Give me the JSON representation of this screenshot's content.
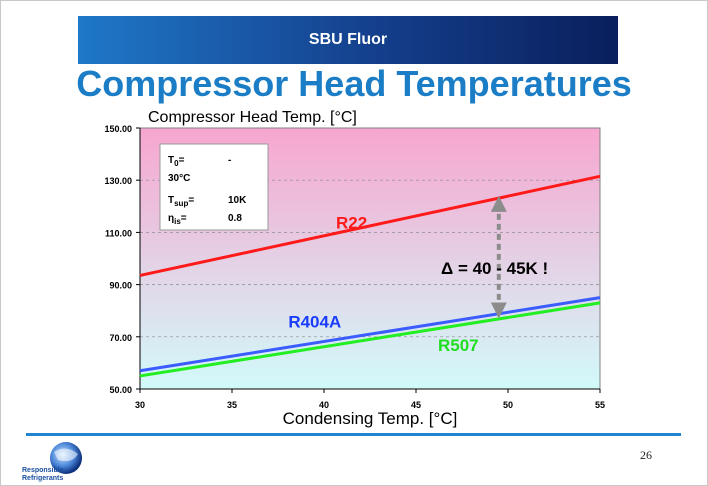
{
  "slide": {
    "banner_text": "SBU Fluor",
    "title": "Compressor Head Temperatures",
    "page_number": "26",
    "logo_text_1": "Responsible",
    "logo_text_2": "Refrigerants"
  },
  "chart_data": {
    "type": "line",
    "ylabel": "Compressor Head Temp. [°C]",
    "xlabel": "Condensing Temp. [°C]",
    "xlim": [
      30,
      55
    ],
    "ylim": [
      50,
      150
    ],
    "xticks": [
      30,
      35,
      40,
      45,
      50,
      55
    ],
    "xtick_labels": [
      "30",
      "35",
      "40",
      "45",
      "50",
      "55"
    ],
    "yticks": [
      50,
      70,
      90,
      110,
      130,
      150
    ],
    "ytick_labels": [
      "50.00",
      "70.00",
      "90.00",
      "110.00",
      "130.00",
      "150.00"
    ],
    "grid": true,
    "series": [
      {
        "name": "R22",
        "x": [
          30,
          55
        ],
        "y": [
          93.5,
          131.5
        ],
        "color": "#ff1a1a",
        "label_color": "#ff1a1a",
        "label_at": [
          41.5,
          111.5
        ]
      },
      {
        "name": "R404A",
        "x": [
          30,
          55
        ],
        "y": [
          57,
          85
        ],
        "color": "#3b5cff",
        "label_color": "#1a3cff",
        "label_at": [
          39.5,
          73.5
        ]
      },
      {
        "name": "R507",
        "x": [
          30,
          55
        ],
        "y": [
          55,
          83
        ],
        "color": "#22ee22",
        "label_color": "#22dd22",
        "label_at": [
          47.3,
          64.5
        ]
      }
    ],
    "conditions_box": {
      "rows": [
        {
          "label": "T",
          "sub": "0",
          "sep": "=",
          "value": "-"
        },
        {
          "label": "30°C",
          "sub": "",
          "sep": "",
          "value": ""
        },
        {
          "label": "T",
          "sub": "sup",
          "sep": "=",
          "value": "10K"
        },
        {
          "label": "η",
          "sub": "is",
          "sep": "=",
          "value": "0.8"
        }
      ]
    },
    "annotation": {
      "text": "Δ = 40 - 45K !",
      "arrow_x": 49.5,
      "arrow_y_top": 124,
      "arrow_y_bottom": 77
    },
    "background_top": "#f7a6cf",
    "background_bottom": "#d2fafa",
    "arrow_color": "#8c8c8c"
  }
}
